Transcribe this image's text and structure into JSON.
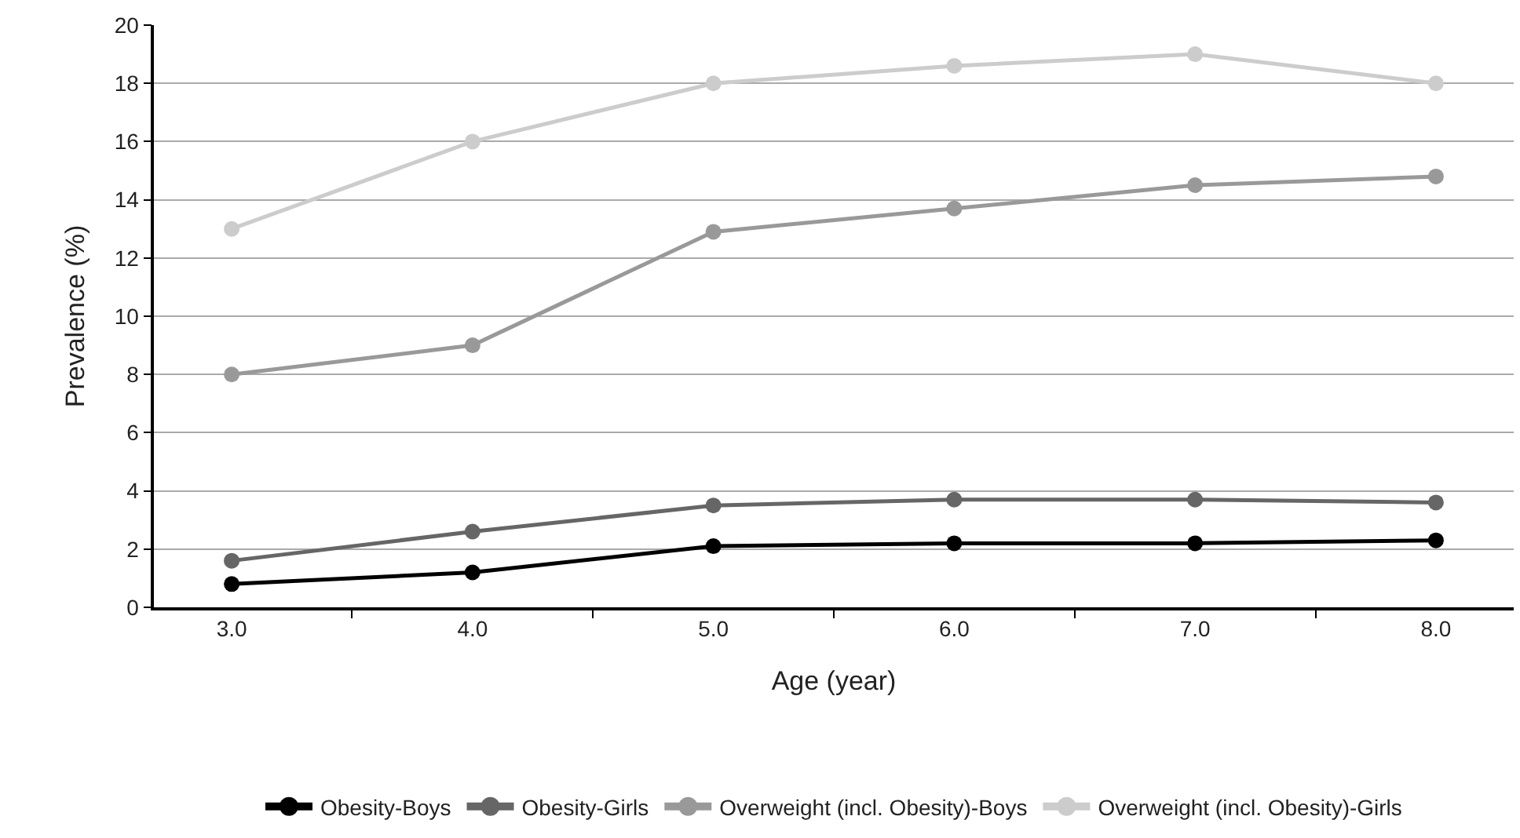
{
  "chart_data": {
    "type": "line",
    "xlabel": "Age (year)",
    "ylabel": "Prevalence (%)",
    "categories": [
      "3.0",
      "4.0",
      "5.0",
      "6.0",
      "7.0",
      "8.0"
    ],
    "series": [
      {
        "name": "Obesity-Boys",
        "color": "#000000",
        "values": [
          0.8,
          1.2,
          2.1,
          2.2,
          2.2,
          2.3
        ]
      },
      {
        "name": "Obesity-Girls",
        "color": "#666666",
        "values": [
          1.6,
          2.6,
          3.5,
          3.7,
          3.7,
          3.6
        ]
      },
      {
        "name": "Overweight (incl. Obesity)-Boys",
        "color": "#999999",
        "values": [
          8,
          9,
          12.9,
          13.7,
          14.5,
          14.8
        ]
      },
      {
        "name": "Overweight (incl. Obesity)-Girls",
        "color": "#cccccc",
        "values": [
          13,
          16,
          18,
          18.6,
          19,
          18
        ]
      }
    ],
    "ylim": [
      0,
      20
    ],
    "yticks": [
      0,
      2,
      4,
      6,
      8,
      10,
      12,
      14,
      16,
      18,
      20
    ],
    "grid": "y",
    "legend": "bottom",
    "marker": "circle",
    "line_style": "solid"
  }
}
